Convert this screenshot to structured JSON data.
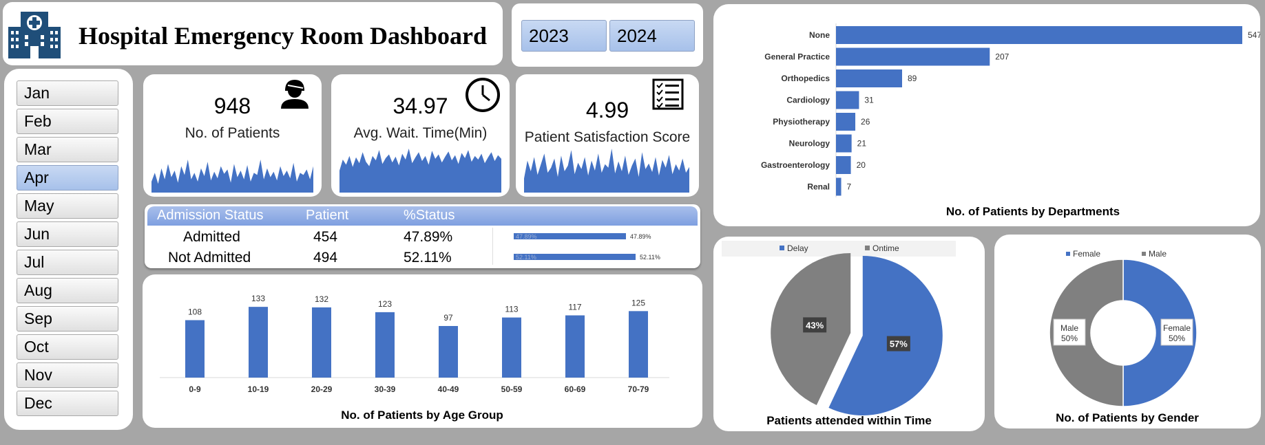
{
  "header": {
    "title": "Hospital Emergency Room Dashboard",
    "logo_icon": "hospital-building-icon"
  },
  "years": [
    "2023",
    "2024"
  ],
  "months": [
    "Jan",
    "Feb",
    "Mar",
    "Apr",
    "May",
    "Jun",
    "Jul",
    "Aug",
    "Sep",
    "Oct",
    "Nov",
    "Dec"
  ],
  "selected_month": "Apr",
  "kpis": {
    "patients": {
      "value": "948",
      "label": "No. of Patients",
      "icon": "patient-person-icon"
    },
    "wait": {
      "value": "34.97",
      "label": "Avg. Wait. Time(Min)",
      "icon": "clock-icon"
    },
    "satisfaction": {
      "value": "4.99",
      "label": "Patient Satisfaction Score",
      "icon": "checklist-icon"
    }
  },
  "admission": {
    "headers": [
      "Admission Status",
      "Patient",
      "%Status"
    ],
    "rows": [
      {
        "status": "Admitted",
        "patients": "454",
        "pct": "47.89%",
        "pct_value": 47.89
      },
      {
        "status": "Not Admitted",
        "patients": "494",
        "pct": "52.11%",
        "pct_value": 52.11
      }
    ]
  },
  "colors": {
    "accent": "#4472c4",
    "gray": "#808080",
    "background": "#a6a6a6"
  },
  "chart_data": [
    {
      "type": "bar",
      "title": "No. of Patients by Age Group",
      "categories": [
        "0-9",
        "10-19",
        "20-29",
        "30-39",
        "40-49",
        "50-59",
        "60-69",
        "70-79"
      ],
      "values": [
        108,
        133,
        132,
        123,
        97,
        113,
        117,
        125
      ],
      "ylim": [
        0,
        150
      ],
      "grid": false,
      "legend": "none"
    },
    {
      "type": "bar",
      "orientation": "horizontal",
      "title": "No. of Patients by Departments",
      "categories": [
        "None",
        "General Practice",
        "Orthopedics",
        "Cardiology",
        "Physiotherapy",
        "Neurology",
        "Gastroenterology",
        "Renal"
      ],
      "values": [
        547,
        207,
        89,
        31,
        26,
        21,
        20,
        7
      ],
      "xlim": [
        0,
        547
      ],
      "grid": false,
      "legend": "none"
    },
    {
      "type": "pie",
      "title": "Patients attended within Time",
      "categories": [
        "Delay",
        "Ontime"
      ],
      "values": [
        57,
        43
      ],
      "labels": [
        "57%",
        "43%"
      ],
      "colors": [
        "#4472c4",
        "#808080"
      ],
      "legend": "top"
    },
    {
      "type": "pie",
      "subtype": "donut",
      "title": "No. of Patients by Gender",
      "categories": [
        "Female",
        "Male"
      ],
      "values": [
        50,
        50
      ],
      "labels": [
        "Female 50%",
        "Male 50%"
      ],
      "colors": [
        "#4472c4",
        "#808080"
      ],
      "legend": "top"
    },
    {
      "type": "area",
      "name": "patients-sparkline",
      "values": [
        10,
        18,
        8,
        22,
        12,
        26,
        14,
        20,
        9,
        24,
        16,
        30,
        12,
        18,
        10,
        22,
        15,
        28,
        11,
        19,
        13,
        24,
        17,
        21,
        9,
        26,
        14,
        20,
        12,
        25,
        10,
        18,
        16,
        30,
        12,
        22,
        14,
        19,
        11,
        24,
        15,
        20,
        13,
        27,
        10,
        18,
        16,
        21,
        12,
        24
      ],
      "legend": "none"
    },
    {
      "type": "area",
      "name": "wait-time-sparkline",
      "values": [
        30,
        45,
        38,
        50,
        35,
        48,
        40,
        55,
        42,
        36,
        50,
        44,
        58,
        39,
        47,
        52,
        41,
        49,
        37,
        53,
        45,
        60,
        40,
        48,
        55,
        43,
        50,
        38,
        57,
        46,
        52,
        41,
        49,
        56,
        44,
        51,
        39,
        54,
        47,
        58,
        42,
        50,
        45,
        53,
        40,
        48,
        55,
        43,
        51,
        46
      ],
      "legend": "none"
    },
    {
      "type": "area",
      "name": "satisfaction-sparkline",
      "values": [
        20,
        45,
        30,
        50,
        25,
        40,
        55,
        28,
        35,
        48,
        22,
        52,
        30,
        38,
        60,
        26,
        42,
        33,
        50,
        24,
        45,
        31,
        55,
        28,
        40,
        35,
        62,
        27,
        44,
        30,
        52,
        25,
        38,
        48,
        22,
        57,
        33,
        41,
        29,
        50,
        24,
        46,
        35,
        53,
        26,
        40,
        31,
        48,
        28,
        36
      ],
      "legend": "none"
    }
  ]
}
